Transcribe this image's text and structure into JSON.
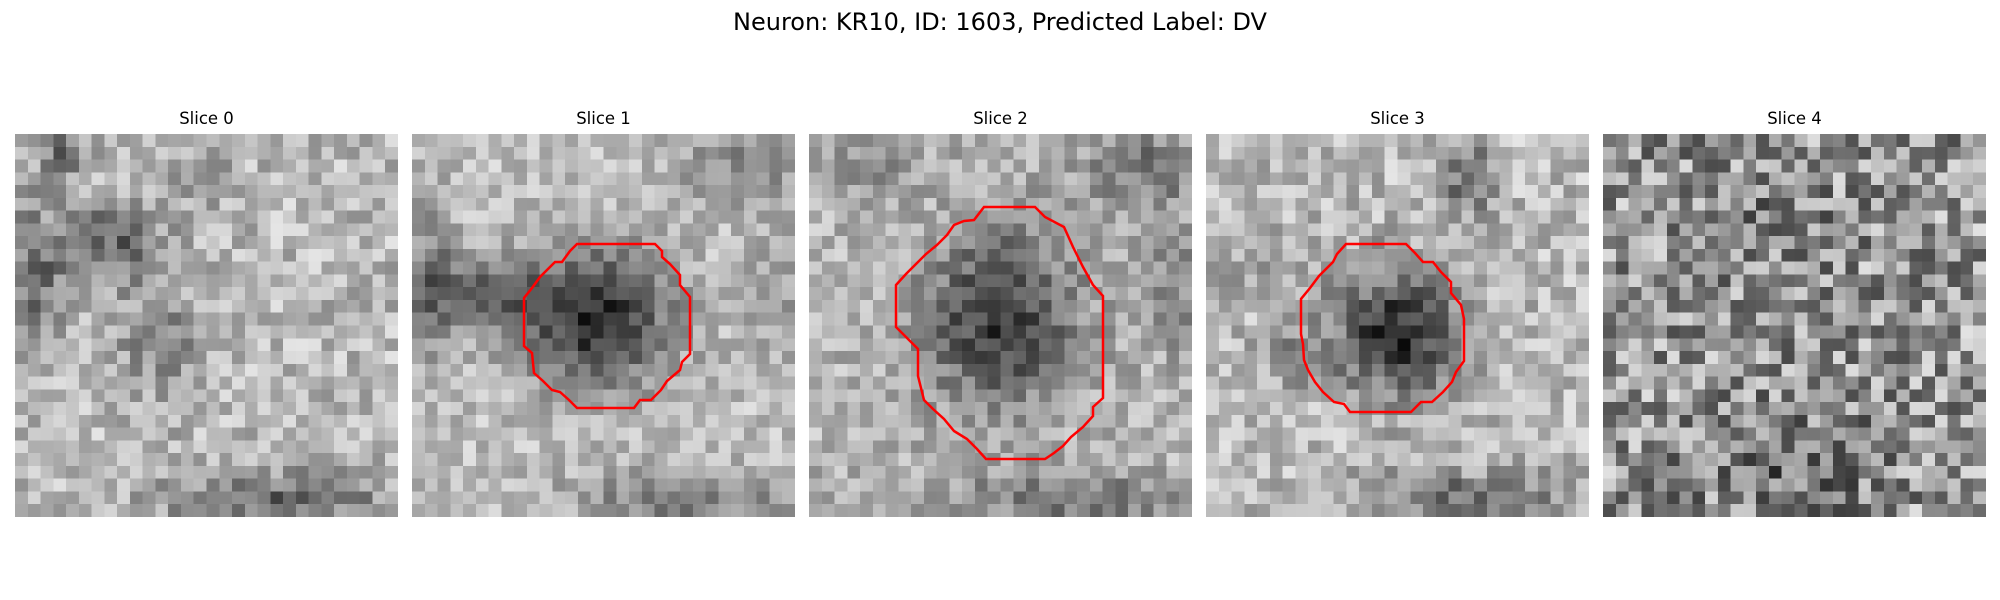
{
  "figure": {
    "title": "Neuron: KR10, ID: 1603, Predicted Label: DV",
    "contour_color": "#ff0000"
  },
  "slices": [
    {
      "title": "Slice 0",
      "has_contour": false
    },
    {
      "title": "Slice 1",
      "has_contour": true
    },
    {
      "title": "Slice 2",
      "has_contour": true
    },
    {
      "title": "Slice 3",
      "has_contour": true
    },
    {
      "title": "Slice 4",
      "has_contour": false
    }
  ]
}
